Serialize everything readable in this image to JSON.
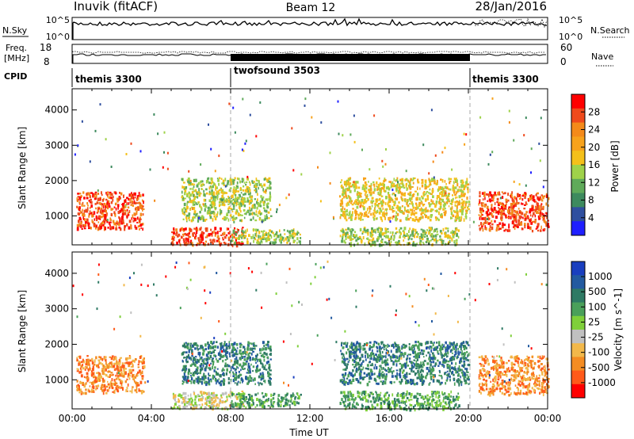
{
  "header": {
    "station": "Inuvik (fitACF)",
    "beam": "Beam 12",
    "date": "28/Jan/2016"
  },
  "top_panel": {
    "left_label_sky": "N.Sky",
    "left_ticks_sky": [
      "10^5",
      "10^0"
    ],
    "right_ticks_search": [
      "10^5",
      "10^0"
    ],
    "right_label_search": "N.Search",
    "freq_label_1": "Freq.",
    "freq_label_2": "[MHz]",
    "freq_ticks": [
      "18",
      "8"
    ],
    "nave_ticks": [
      "60",
      "0"
    ],
    "right_label_nave": "Nave",
    "cpid_label": "CPID",
    "cpid_segments": [
      {
        "name": "themis 3300",
        "start": 0,
        "end": 8
      },
      {
        "name": "twofsound 3503",
        "start": 8,
        "end": 20
      },
      {
        "name": "themis 3300",
        "start": 20,
        "end": 24
      }
    ]
  },
  "colors": {
    "power_scale": [
      "#1f1fff",
      "#2f4f9f",
      "#3d8a5e",
      "#5faa5a",
      "#9fd24a",
      "#f4c01a",
      "#f7a21c",
      "#f48a1a",
      "#ef4a1c",
      "#ff0000"
    ],
    "velocity_scale": [
      "#ff0000",
      "#ff5a1a",
      "#f48c22",
      "#f2b84a",
      "#c0c0c0",
      "#7fcf3a",
      "#4aa05a",
      "#2e7a64",
      "#235aa0",
      "#1a3fbf"
    ]
  },
  "chart_data": [
    {
      "type": "heatmap",
      "panel": "power",
      "xlabel": "",
      "ylabel": "Slant Range [km]",
      "ylim": [
        180,
        4600
      ],
      "xlim": [
        0,
        24
      ],
      "y_ticks": [
        "1000",
        "2000",
        "3000",
        "4000"
      ],
      "colorbar_label": "Power [dB]",
      "colorbar_ticks": [
        "4",
        "8",
        "12",
        "16",
        "20",
        "24",
        "28"
      ],
      "scatter_regions": [
        {
          "x": [
            0.2,
            3.6
          ],
          "y": [
            650,
            1700
          ],
          "value": 28
        },
        {
          "x": [
            5.0,
            8.6
          ],
          "y": [
            200,
            700
          ],
          "value": 26
        },
        {
          "x": [
            5.5,
            10.0
          ],
          "y": [
            900,
            2100
          ],
          "value": 14
        },
        {
          "x": [
            8.0,
            11.5
          ],
          "y": [
            250,
            650
          ],
          "value": 12
        },
        {
          "x": [
            13.5,
            20.0
          ],
          "y": [
            900,
            2100
          ],
          "value": 18
        },
        {
          "x": [
            13.5,
            19.5
          ],
          "y": [
            200,
            700
          ],
          "value": 14
        },
        {
          "x": [
            20.5,
            24.0
          ],
          "y": [
            600,
            1700
          ],
          "value": 28
        }
      ]
    },
    {
      "type": "heatmap",
      "panel": "velocity",
      "xlabel": "Time UT",
      "ylabel": "Slant Range [km]",
      "ylim": [
        180,
        4600
      ],
      "xlim": [
        0,
        24
      ],
      "x_ticks": [
        "00:00",
        "04:00",
        "08:00",
        "12:00",
        "16:00",
        "20:00",
        "00:00"
      ],
      "y_ticks": [
        "1000",
        "2000",
        "3000",
        "4000"
      ],
      "colorbar_label": "Velocity [m s^-1]",
      "colorbar_ticks": [
        "1000",
        "500",
        "100",
        "25",
        "-25",
        "-100",
        "-500",
        "-1000"
      ],
      "scatter_regions": [
        {
          "x": [
            0.2,
            3.6
          ],
          "y": [
            650,
            1700
          ],
          "value": -100
        },
        {
          "x": [
            5.0,
            8.6
          ],
          "y": [
            200,
            700
          ],
          "value": 25
        },
        {
          "x": [
            5.5,
            10.0
          ],
          "y": [
            900,
            2100
          ],
          "value": 200
        },
        {
          "x": [
            8.0,
            11.5
          ],
          "y": [
            250,
            650
          ],
          "value": 50
        },
        {
          "x": [
            13.5,
            20.0
          ],
          "y": [
            900,
            2100
          ],
          "value": 300
        },
        {
          "x": [
            13.5,
            19.5
          ],
          "y": [
            200,
            700
          ],
          "value": 60
        },
        {
          "x": [
            20.5,
            24.0
          ],
          "y": [
            600,
            1700
          ],
          "value": -200
        }
      ]
    }
  ]
}
